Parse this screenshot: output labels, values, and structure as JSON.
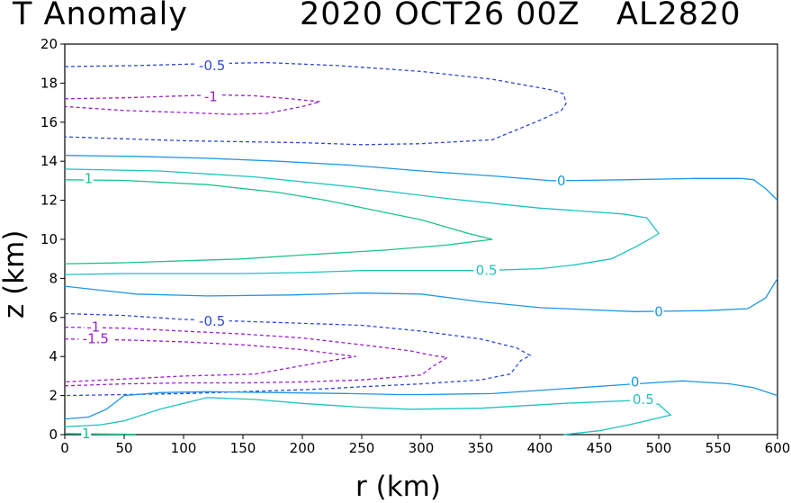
{
  "header": {
    "title": "T Anomaly",
    "datetime": "2020 OCT26 00Z",
    "storm_id": "AL2820"
  },
  "colors": {
    "neg_1": "#9b1fd0",
    "neg_0_5": "#2f48d8",
    "zero": "#1e96e6",
    "pos_0_5": "#1ec4be",
    "pos_1": "#19c48f"
  },
  "chart_data": {
    "type": "contour",
    "title": "T Anomaly",
    "xlabel": "r (km)",
    "ylabel": "z (km)",
    "xlim": [
      0,
      600
    ],
    "ylim": [
      0,
      20
    ],
    "x_ticks": [
      "0",
      "50",
      "100",
      "150",
      "200",
      "250",
      "300",
      "350",
      "400",
      "450",
      "500",
      "550",
      "600"
    ],
    "y_ticks": [
      "0",
      "2",
      "4",
      "6",
      "8",
      "10",
      "12",
      "14",
      "16",
      "18",
      "20"
    ],
    "contours": [
      {
        "level": -0.5,
        "label": "-0.5",
        "style": "dashed",
        "color": "neg_0_5",
        "label_at": [
          124,
          18.9
        ],
        "points": [
          [
            0,
            18.85
          ],
          [
            60,
            18.9
          ],
          [
            120,
            19.0
          ],
          [
            170,
            19.05
          ],
          [
            230,
            18.9
          ],
          [
            300,
            18.6
          ],
          [
            360,
            18.2
          ],
          [
            410,
            17.65
          ],
          [
            420,
            17.45
          ],
          [
            422,
            16.95
          ],
          [
            418,
            16.6
          ],
          [
            400,
            16.1
          ],
          [
            380,
            15.6
          ],
          [
            360,
            15.1
          ],
          [
            300,
            14.9
          ],
          [
            250,
            14.85
          ],
          [
            200,
            14.95
          ],
          [
            150,
            15.0
          ],
          [
            100,
            15.05
          ],
          [
            50,
            15.15
          ],
          [
            0,
            15.25
          ]
        ]
      },
      {
        "level": -1,
        "label": "-1",
        "style": "dashed",
        "color": "neg_1",
        "label_at": [
          123,
          17.3
        ],
        "points": [
          [
            0,
            17.2
          ],
          [
            50,
            17.25
          ],
          [
            100,
            17.35
          ],
          [
            130,
            17.4
          ],
          [
            160,
            17.35
          ],
          [
            190,
            17.2
          ],
          [
            215,
            17.05
          ],
          [
            200,
            16.8
          ],
          [
            170,
            16.45
          ],
          [
            140,
            16.4
          ],
          [
            100,
            16.5
          ],
          [
            50,
            16.6
          ],
          [
            0,
            16.8
          ]
        ]
      },
      {
        "level": 0,
        "label": "0",
        "style": "solid",
        "color": "zero",
        "label_at": [
          418,
          13.0
        ],
        "points": [
          [
            0,
            14.3
          ],
          [
            60,
            14.25
          ],
          [
            120,
            14.15
          ],
          [
            180,
            14.0
          ],
          [
            240,
            13.8
          ],
          [
            300,
            13.5
          ],
          [
            360,
            13.25
          ],
          [
            410,
            13.0
          ],
          [
            470,
            13.05
          ],
          [
            530,
            13.12
          ],
          [
            570,
            13.12
          ],
          [
            580,
            13.05
          ],
          [
            590,
            12.6
          ],
          [
            600,
            12.0
          ]
        ]
      },
      {
        "level": 1,
        "label": "1",
        "style": "solid",
        "color": "pos_1",
        "label_at": [
          20,
          13.1
        ],
        "points": [
          [
            0,
            13.05
          ],
          [
            50,
            13.02
          ],
          [
            120,
            12.8
          ],
          [
            180,
            12.4
          ],
          [
            220,
            12.0
          ],
          [
            260,
            11.5
          ],
          [
            300,
            11.0
          ],
          [
            340,
            10.3
          ],
          [
            360,
            10.0
          ],
          [
            320,
            9.7
          ],
          [
            270,
            9.45
          ],
          [
            200,
            9.2
          ],
          [
            150,
            9.0
          ],
          [
            50,
            8.8
          ],
          [
            0,
            8.75
          ]
        ]
      },
      {
        "level": 0.5,
        "label": "0.5",
        "style": "solid",
        "color": "pos_0_5",
        "label_at": [
          355,
          8.4
        ],
        "points": [
          [
            0,
            13.6
          ],
          [
            80,
            13.5
          ],
          [
            160,
            13.2
          ],
          [
            240,
            12.7
          ],
          [
            320,
            12.1
          ],
          [
            400,
            11.6
          ],
          [
            470,
            11.3
          ],
          [
            490,
            11.1
          ],
          [
            500,
            10.3
          ],
          [
            492,
            10.0
          ],
          [
            480,
            9.6
          ],
          [
            460,
            9.0
          ],
          [
            430,
            8.7
          ],
          [
            400,
            8.5
          ],
          [
            350,
            8.4
          ],
          [
            300,
            8.4
          ],
          [
            250,
            8.4
          ],
          [
            200,
            8.3
          ],
          [
            150,
            8.25
          ],
          [
            100,
            8.25
          ],
          [
            50,
            8.25
          ],
          [
            0,
            8.2
          ]
        ]
      },
      {
        "level": 0,
        "label": "0",
        "style": "solid",
        "color": "zero",
        "label_at": [
          500,
          6.3
        ],
        "points": [
          [
            0,
            7.6
          ],
          [
            60,
            7.2
          ],
          [
            120,
            7.1
          ],
          [
            190,
            7.15
          ],
          [
            250,
            7.25
          ],
          [
            300,
            7.2
          ],
          [
            350,
            6.8
          ],
          [
            400,
            6.5
          ],
          [
            480,
            6.3
          ],
          [
            540,
            6.35
          ],
          [
            575,
            6.45
          ],
          [
            590,
            7.0
          ],
          [
            600,
            8.0
          ]
        ]
      },
      {
        "level": -0.5,
        "label": "-0.5",
        "style": "dashed",
        "color": "neg_0_5",
        "label_at": [
          124,
          5.8
        ],
        "points": [
          [
            0,
            6.2
          ],
          [
            50,
            6.1
          ],
          [
            100,
            5.9
          ],
          [
            150,
            5.8
          ],
          [
            200,
            5.7
          ],
          [
            250,
            5.6
          ],
          [
            300,
            5.3
          ],
          [
            350,
            4.9
          ],
          [
            380,
            4.45
          ],
          [
            392,
            4.05
          ],
          [
            384,
            3.8
          ],
          [
            375,
            3.1
          ],
          [
            350,
            2.8
          ],
          [
            300,
            2.6
          ],
          [
            250,
            2.45
          ],
          [
            220,
            2.35
          ],
          [
            200,
            2.3
          ],
          [
            150,
            2.2
          ],
          [
            100,
            2.1
          ],
          [
            50,
            2.05
          ],
          [
            0,
            2.0
          ]
        ]
      },
      {
        "level": -1,
        "label": "-1",
        "style": "dashed",
        "color": "neg_1",
        "label_at": [
          24,
          5.5
        ],
        "points": [
          [
            0,
            5.5
          ],
          [
            50,
            5.45
          ],
          [
            100,
            5.3
          ],
          [
            150,
            5.15
          ],
          [
            200,
            4.95
          ],
          [
            250,
            4.6
          ],
          [
            290,
            4.3
          ],
          [
            310,
            4.05
          ],
          [
            322,
            3.95
          ],
          [
            310,
            3.5
          ],
          [
            300,
            3.05
          ],
          [
            250,
            2.8
          ],
          [
            200,
            2.7
          ],
          [
            150,
            2.65
          ],
          [
            100,
            2.65
          ],
          [
            50,
            2.6
          ],
          [
            0,
            2.5
          ]
        ]
      },
      {
        "level": -1.5,
        "label": "-1.5",
        "style": "dashed",
        "color": "neg_1",
        "label_at": [
          26,
          4.9
        ],
        "points": [
          [
            0,
            4.9
          ],
          [
            50,
            4.85
          ],
          [
            100,
            4.75
          ],
          [
            150,
            4.6
          ],
          [
            200,
            4.35
          ],
          [
            245,
            4.0
          ],
          [
            220,
            3.75
          ],
          [
            160,
            3.1
          ],
          [
            100,
            3.0
          ],
          [
            50,
            2.85
          ],
          [
            0,
            2.7
          ]
        ]
      },
      {
        "level": 0,
        "label": "0",
        "style": "solid",
        "color": "zero",
        "label_at": [
          480,
          2.7
        ],
        "points": [
          [
            0,
            0.8
          ],
          [
            20,
            0.9
          ],
          [
            35,
            1.3
          ],
          [
            50,
            2.0
          ],
          [
            80,
            2.15
          ],
          [
            120,
            2.2
          ],
          [
            180,
            2.15
          ],
          [
            240,
            2.1
          ],
          [
            280,
            2.05
          ],
          [
            300,
            2.05
          ],
          [
            360,
            2.1
          ],
          [
            420,
            2.35
          ],
          [
            480,
            2.6
          ],
          [
            520,
            2.75
          ],
          [
            560,
            2.6
          ],
          [
            580,
            2.4
          ],
          [
            600,
            2.0
          ]
        ]
      },
      {
        "level": 0.5,
        "label": "0.5",
        "style": "solid",
        "color": "pos_0_5",
        "label_at": [
          487,
          1.8
        ],
        "points": [
          [
            0,
            0.4
          ],
          [
            30,
            0.5
          ],
          [
            50,
            0.7
          ],
          [
            80,
            1.3
          ],
          [
            100,
            1.6
          ],
          [
            120,
            1.9
          ],
          [
            160,
            1.8
          ],
          [
            200,
            1.6
          ],
          [
            250,
            1.4
          ],
          [
            290,
            1.3
          ],
          [
            350,
            1.35
          ],
          [
            420,
            1.6
          ],
          [
            480,
            1.75
          ],
          [
            500,
            1.55
          ],
          [
            510,
            1.0
          ],
          [
            475,
            0.5
          ],
          [
            450,
            0.2
          ],
          [
            420,
            0.0
          ]
        ]
      },
      {
        "level": 1,
        "label": "1",
        "style": "solid",
        "color": "pos_1",
        "label_at": [
          18,
          0.05
        ],
        "points": [
          [
            0,
            0.05
          ],
          [
            30,
            0.03
          ],
          [
            60,
            0.02
          ]
        ]
      }
    ]
  }
}
